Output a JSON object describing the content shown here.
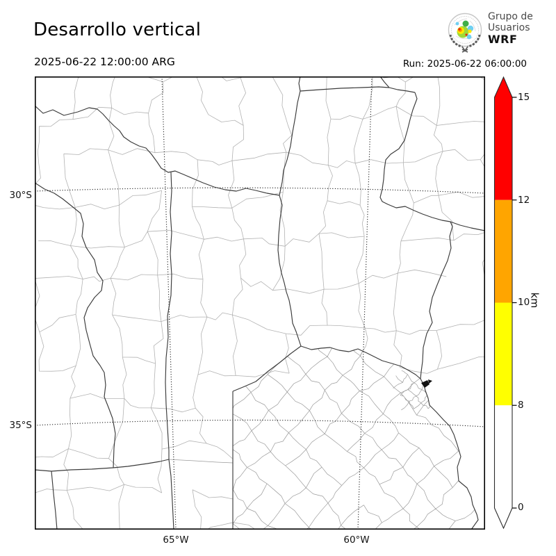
{
  "header": {
    "title": "Desarrollo vertical",
    "valid_time": "2025-06-22 12:00:00 ARG",
    "run_label": "Run: 2025-06-22 06:00:00"
  },
  "logo": {
    "org_line1": "Grupo de",
    "org_line2": "Usuarios",
    "org_line3": "WRF"
  },
  "map": {
    "lat_labels": [
      "30°S",
      "35°S"
    ],
    "lon_labels": [
      "65°W",
      "60°W"
    ]
  },
  "colorbar": {
    "unit": "km",
    "levels": [
      0,
      8,
      10,
      12,
      15
    ],
    "tick_labels": [
      "15",
      "12",
      "10",
      "8",
      "0"
    ],
    "band_colors": {
      "b0_8": "#ffffff",
      "b8_10": "#ffff00",
      "b10_12": "#ffa500",
      "b12_15": "#ff0000"
    },
    "over_color": "#ff0000",
    "under_color": "#ffffff",
    "outline_color": "#2b2b2b"
  }
}
